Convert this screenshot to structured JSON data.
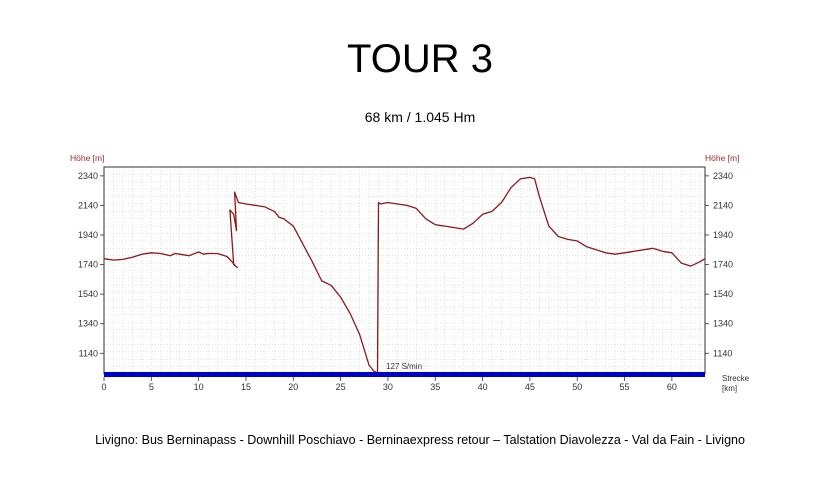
{
  "header": {
    "title": "TOUR 3",
    "subtitle": "68 km / 1.045 Hm"
  },
  "footer": {
    "caption": "Livigno: Bus Berninapass - Downhill Poschiavo - Berninaexpress retour – Talstation Diavolezza - Val da Fain - Livigno"
  },
  "chart_data": {
    "type": "line",
    "title": "",
    "ylabel_left": "Höhe [m]",
    "ylabel_right": "Höhe [m]",
    "xlabel": "Strecke",
    "xlabel_unit": "[km]",
    "annotation": "127 S/min",
    "xlim": [
      0,
      63.5
    ],
    "ylim": [
      1000,
      2400
    ],
    "x_ticks": [
      0,
      5,
      10,
      15,
      20,
      25,
      30,
      35,
      40,
      45,
      50,
      55,
      60
    ],
    "y_ticks": [
      1140,
      1340,
      1540,
      1740,
      1940,
      2140,
      2340
    ],
    "grid": true,
    "colors": {
      "line": "#8b1a1a",
      "axis_text": "#a52a2a",
      "bar": "#0000cc"
    },
    "series": [
      {
        "x": [
          0,
          1,
          2,
          3,
          4,
          5,
          6,
          7,
          7.5,
          8,
          9,
          10,
          10.5,
          11,
          12,
          13,
          13.5,
          13.9,
          14.1,
          13.7,
          13.3,
          13.7,
          14.0,
          13.8,
          14.2,
          15,
          16,
          17,
          18,
          18.5,
          19,
          20,
          21,
          22,
          23,
          24,
          25,
          26,
          27,
          28,
          28.5,
          28.8,
          28.9,
          29.0,
          29.2,
          30,
          31,
          32,
          33,
          34,
          35,
          36,
          37,
          38,
          39,
          40,
          41,
          42,
          43,
          44,
          45,
          45.5,
          46,
          47,
          48,
          49,
          50,
          51,
          52,
          53,
          54,
          55,
          56,
          57,
          58,
          59,
          60,
          61,
          62,
          63,
          63.5
        ],
        "values": [
          1780,
          1770,
          1775,
          1790,
          1810,
          1820,
          1815,
          1800,
          1815,
          1810,
          1800,
          1825,
          1810,
          1815,
          1815,
          1795,
          1760,
          1730,
          1720,
          1740,
          2110,
          2080,
          1970,
          2230,
          2160,
          2150,
          2140,
          2130,
          2100,
          2060,
          2050,
          2000,
          1880,
          1760,
          1630,
          1600,
          1520,
          1410,
          1270,
          1060,
          1020,
          1010,
          1005,
          2160,
          2150,
          2160,
          2150,
          2140,
          2120,
          2050,
          2010,
          2000,
          1990,
          1980,
          2020,
          2080,
          2100,
          2160,
          2260,
          2320,
          2330,
          2320,
          2200,
          2000,
          1930,
          1910,
          1900,
          1860,
          1840,
          1820,
          1810,
          1820,
          1830,
          1840,
          1850,
          1830,
          1820,
          1750,
          1730,
          1760,
          1780
        ]
      }
    ]
  }
}
